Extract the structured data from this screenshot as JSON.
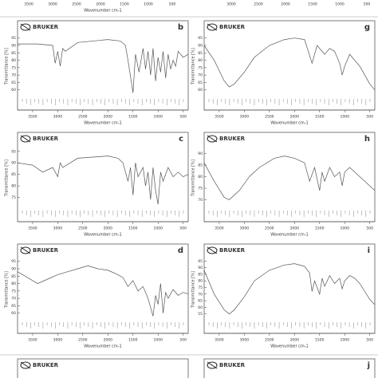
{
  "chart_data": [
    {
      "type": "line",
      "panel": "b",
      "brand": "BRUKER",
      "ylabel": "Transmittance [%]",
      "xlabel": "Wavenumber cm-1",
      "xlim": [
        3800,
        400
      ],
      "xticks": [
        3500,
        3000,
        2500,
        2000,
        1500,
        1000,
        500
      ],
      "ylim": [
        55,
        97
      ],
      "yticks": [
        60,
        65,
        70,
        75,
        80,
        85,
        90,
        95
      ],
      "x": [
        3800,
        3400,
        3100,
        3050,
        3000,
        2950,
        2900,
        2850,
        2600,
        2000,
        1750,
        1650,
        1600,
        1500,
        1450,
        1380,
        1300,
        1250,
        1200,
        1150,
        1100,
        1050,
        1000,
        950,
        900,
        850,
        800,
        750,
        700,
        650,
        600,
        500,
        400
      ],
      "values": [
        91,
        91,
        90,
        78,
        86,
        76,
        88,
        86,
        92,
        94,
        93,
        90,
        80,
        58,
        84,
        72,
        88,
        74,
        86,
        70,
        88,
        66,
        82,
        72,
        86,
        68,
        84,
        74,
        80,
        76,
        86,
        82,
        84
      ],
      "color": "#555555"
    },
    {
      "type": "line",
      "panel": "c",
      "brand": "BRUKER",
      "ylabel": "Transmittance [%]",
      "xlabel": "Wavenumber cm-1",
      "xlim": [
        3800,
        400
      ],
      "xticks": [
        3500,
        3000,
        2500,
        2000,
        1500,
        1000,
        500
      ],
      "ylim": [
        70,
        97
      ],
      "yticks": [
        75,
        80,
        85,
        90,
        95
      ],
      "x": [
        3800,
        3500,
        3300,
        3100,
        3000,
        2950,
        2900,
        2600,
        2000,
        1800,
        1700,
        1600,
        1550,
        1500,
        1450,
        1400,
        1300,
        1250,
        1200,
        1150,
        1100,
        1050,
        1000,
        950,
        900,
        800,
        700,
        600,
        500,
        400
      ],
      "values": [
        90,
        89,
        86,
        88,
        84,
        90,
        88,
        92,
        93,
        92,
        90,
        82,
        88,
        76,
        90,
        84,
        88,
        80,
        86,
        74,
        88,
        78,
        72,
        86,
        82,
        88,
        84,
        86,
        84,
        85
      ],
      "color": "#555555"
    },
    {
      "type": "line",
      "panel": "d",
      "brand": "BRUKER",
      "ylabel": "Transmittance [%]",
      "xlabel": "Wavenumber cm-1",
      "xlim": [
        3800,
        400
      ],
      "xticks": [
        3500,
        3000,
        2500,
        2000,
        1500,
        1000,
        500
      ],
      "ylim": [
        55,
        97
      ],
      "yticks": [
        60,
        65,
        70,
        75,
        80,
        85,
        90,
        95
      ],
      "x": [
        3800,
        3600,
        3400,
        3200,
        3000,
        2800,
        2600,
        2400,
        2200,
        2000,
        1800,
        1700,
        1600,
        1500,
        1400,
        1300,
        1200,
        1100,
        1050,
        1000,
        950,
        900,
        850,
        800,
        700,
        600,
        500,
        400
      ],
      "values": [
        88,
        84,
        80,
        83,
        86,
        88,
        90,
        92,
        90,
        89,
        86,
        84,
        78,
        82,
        75,
        78,
        70,
        58,
        72,
        66,
        80,
        60,
        74,
        70,
        76,
        72,
        74,
        73
      ],
      "color": "#555555"
    },
    {
      "type": "line",
      "panel": "g",
      "brand": "BRUKER",
      "ylabel": "Transmittance [%]",
      "xlabel": "Wavenumber cm-1",
      "xlim": [
        3800,
        400
      ],
      "xticks": [
        3500,
        3000,
        2500,
        2000,
        1500,
        1000,
        500
      ],
      "ylim": [
        55,
        97
      ],
      "yticks": [
        60,
        65,
        70,
        75,
        80,
        85,
        90,
        95
      ],
      "x": [
        3800,
        3600,
        3400,
        3300,
        3200,
        3000,
        2800,
        2500,
        2200,
        2000,
        1800,
        1650,
        1550,
        1450,
        1400,
        1300,
        1200,
        1100,
        1050,
        1000,
        900,
        800,
        700,
        600,
        500,
        400
      ],
      "values": [
        90,
        80,
        66,
        62,
        64,
        72,
        82,
        90,
        94,
        95,
        94,
        78,
        90,
        86,
        84,
        88,
        86,
        78,
        70,
        76,
        84,
        80,
        76,
        70,
        64,
        60
      ],
      "color": "#555555"
    },
    {
      "type": "line",
      "panel": "h",
      "brand": "BRUKER",
      "ylabel": "Transmittance [%]",
      "xlabel": "Wavenumber cm-1",
      "xlim": [
        3800,
        400
      ],
      "xticks": [
        3500,
        3000,
        2500,
        2000,
        1500,
        1000,
        500
      ],
      "ylim": [
        66,
        93
      ],
      "yticks": [
        70,
        75,
        80,
        85,
        90
      ],
      "x": [
        3800,
        3600,
        3400,
        3300,
        3100,
        2900,
        2700,
        2400,
        2200,
        2000,
        1800,
        1700,
        1600,
        1500,
        1450,
        1400,
        1300,
        1200,
        1100,
        1050,
        1000,
        900,
        800,
        700,
        600,
        500,
        400
      ],
      "values": [
        86,
        78,
        71,
        70,
        74,
        80,
        84,
        88,
        89,
        88,
        86,
        78,
        84,
        74,
        82,
        78,
        84,
        80,
        82,
        76,
        82,
        84,
        82,
        80,
        78,
        76,
        74
      ],
      "color": "#555555"
    },
    {
      "type": "line",
      "panel": "i",
      "brand": "BRUKER",
      "ylabel": "Transmittance [%]",
      "xlabel": "Wavenumber cm-1",
      "xlim": [
        3800,
        400
      ],
      "xticks": [
        3500,
        3000,
        2500,
        2000,
        1500,
        1000,
        500
      ],
      "ylim": [
        50,
        97
      ],
      "yticks": [
        55,
        60,
        65,
        70,
        75,
        80,
        85,
        90,
        95
      ],
      "x": [
        3800,
        3600,
        3400,
        3300,
        3200,
        3000,
        2800,
        2500,
        2200,
        2000,
        1800,
        1700,
        1650,
        1600,
        1500,
        1450,
        1400,
        1300,
        1200,
        1100,
        1050,
        1000,
        900,
        800,
        700,
        600,
        500,
        400
      ],
      "values": [
        88,
        70,
        58,
        55,
        58,
        68,
        80,
        88,
        92,
        93,
        91,
        86,
        72,
        80,
        70,
        82,
        76,
        84,
        78,
        82,
        74,
        80,
        84,
        82,
        78,
        72,
        66,
        62
      ],
      "color": "#555555"
    }
  ],
  "partial_panels": {
    "top_left_xticks": [
      "3500",
      "3000",
      "2500",
      "2000",
      "1500",
      "1000",
      "500"
    ],
    "top_left_xlabel": "Wavenumber cm-1",
    "top_right_xticks": [
      "3000",
      "2500",
      "2000",
      "1500",
      "1000",
      "500"
    ],
    "bottom_left_brand": "BRUKER",
    "bottom_right_brand": "BRUKER",
    "bottom_right_panel": "j"
  }
}
